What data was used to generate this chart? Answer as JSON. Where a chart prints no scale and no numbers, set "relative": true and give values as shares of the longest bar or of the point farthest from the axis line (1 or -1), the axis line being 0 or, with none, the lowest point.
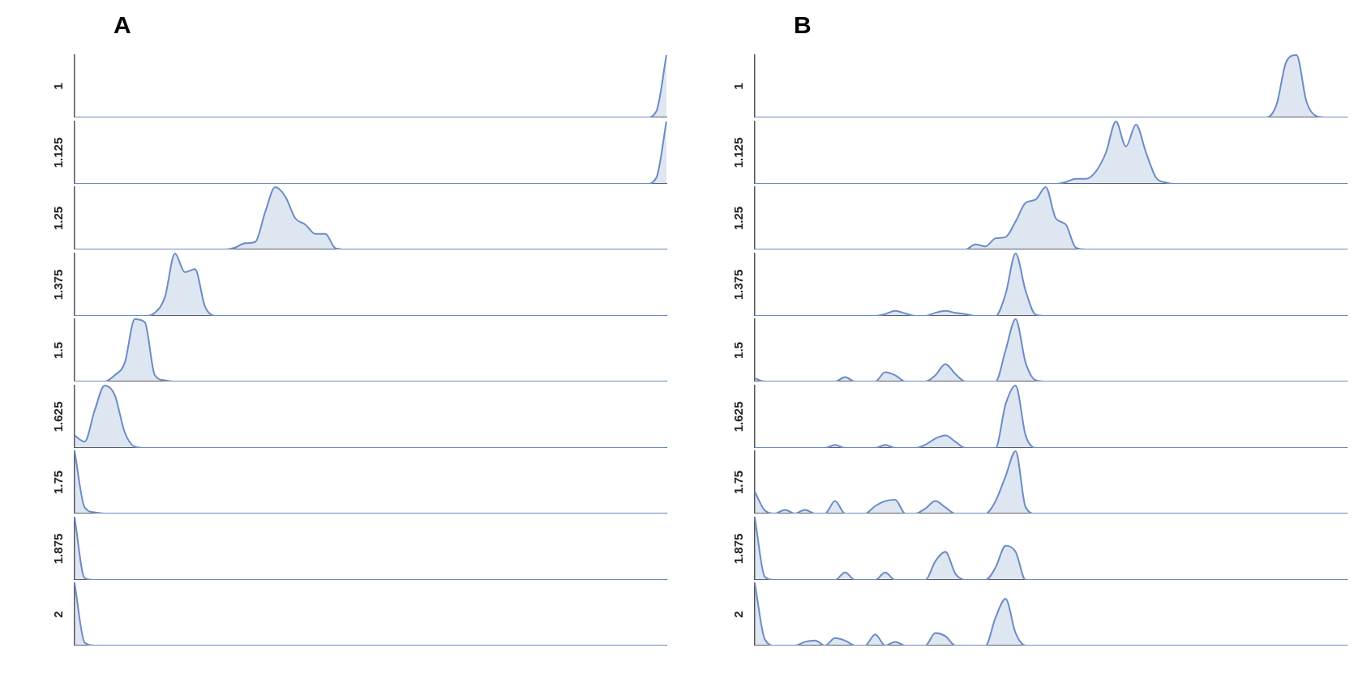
{
  "chart_data": [
    {
      "type": "area",
      "relative": true,
      "title": "A",
      "ylabel": "1",
      "color": "#6b8cc6",
      "categories": [
        null,
        null,
        null,
        null,
        null,
        null,
        null,
        null,
        null,
        null,
        null,
        null,
        null,
        null,
        null,
        null,
        null,
        null,
        null,
        null,
        null,
        null,
        null,
        null,
        null,
        null,
        null,
        null,
        null,
        null,
        null,
        null,
        null,
        null,
        null,
        null,
        null,
        null,
        null,
        null,
        null,
        null,
        null,
        null,
        null,
        null,
        null,
        null,
        null,
        null,
        null,
        null,
        null,
        null,
        null,
        null,
        null,
        null,
        null,
        null
      ],
      "values": [
        0,
        0,
        0,
        0,
        0,
        0,
        0,
        0,
        0,
        0,
        0,
        0,
        0,
        0,
        0,
        0,
        0,
        0,
        0,
        0,
        0,
        0,
        0,
        0,
        0,
        0,
        0,
        0,
        0,
        0,
        0,
        0,
        0,
        0,
        0,
        0,
        0,
        0,
        0,
        0,
        0,
        0,
        0,
        0,
        0,
        0,
        0,
        0,
        0,
        0,
        0,
        0,
        0,
        0,
        0,
        0,
        0,
        0,
        0.1,
        1
      ]
    },
    {
      "type": "area",
      "relative": true,
      "ylabel": "1.125",
      "color": "#6b8cc6",
      "categories": [
        null,
        null,
        null,
        null,
        null,
        null,
        null,
        null,
        null,
        null,
        null,
        null,
        null,
        null,
        null,
        null,
        null,
        null,
        null,
        null,
        null,
        null,
        null,
        null,
        null,
        null,
        null,
        null,
        null,
        null,
        null,
        null,
        null,
        null,
        null,
        null,
        null,
        null,
        null,
        null,
        null,
        null,
        null,
        null,
        null,
        null,
        null,
        null,
        null,
        null,
        null,
        null,
        null,
        null,
        null,
        null,
        null,
        null,
        null,
        null
      ],
      "values": [
        0,
        0,
        0,
        0,
        0,
        0,
        0,
        0,
        0,
        0,
        0,
        0,
        0,
        0,
        0,
        0,
        0,
        0,
        0,
        0,
        0,
        0,
        0,
        0,
        0,
        0,
        0,
        0,
        0,
        0,
        0,
        0,
        0,
        0,
        0,
        0,
        0,
        0,
        0,
        0,
        0,
        0,
        0,
        0,
        0,
        0,
        0,
        0,
        0,
        0,
        0,
        0,
        0,
        0,
        0,
        0,
        0,
        0,
        0.1,
        1
      ]
    },
    {
      "type": "area",
      "relative": true,
      "ylabel": "1.25",
      "color": "#6b8cc6",
      "categories": [
        null,
        null,
        null,
        null,
        null,
        null,
        null,
        null,
        null,
        null,
        null,
        null,
        null,
        null,
        null,
        null,
        null,
        null,
        null,
        null,
        null,
        null,
        null,
        null,
        null,
        null,
        null,
        null,
        null,
        null,
        null,
        null,
        null,
        null,
        null,
        null,
        null,
        null,
        null,
        null,
        null,
        null,
        null,
        null,
        null,
        null,
        null,
        null,
        null,
        null,
        null,
        null,
        null,
        null,
        null,
        null,
        null,
        null,
        null,
        null
      ],
      "values": [
        0,
        0,
        0,
        0,
        0,
        0,
        0,
        0,
        0,
        0,
        0,
        0,
        0,
        0,
        0,
        0,
        0.03,
        0.1,
        0.12,
        0.6,
        1,
        0.85,
        0.5,
        0.4,
        0.25,
        0.25,
        0.02,
        0,
        0,
        0,
        0,
        0,
        0,
        0,
        0,
        0,
        0,
        0,
        0,
        0,
        0,
        0,
        0,
        0,
        0,
        0,
        0,
        0,
        0,
        0,
        0,
        0,
        0,
        0,
        0,
        0,
        0,
        0,
        0,
        0
      ]
    },
    {
      "type": "area",
      "relative": true,
      "ylabel": "1.375",
      "color": "#6b8cc6",
      "categories": [
        null,
        null,
        null,
        null,
        null,
        null,
        null,
        null,
        null,
        null,
        null,
        null,
        null,
        null,
        null,
        null,
        null,
        null,
        null,
        null,
        null,
        null,
        null,
        null,
        null,
        null,
        null,
        null,
        null,
        null,
        null,
        null,
        null,
        null,
        null,
        null,
        null,
        null,
        null,
        null,
        null,
        null,
        null,
        null,
        null,
        null,
        null,
        null,
        null,
        null,
        null,
        null,
        null,
        null,
        null,
        null,
        null,
        null,
        null,
        null
      ],
      "values": [
        0,
        0,
        0,
        0,
        0,
        0,
        0,
        0,
        0.05,
        0.3,
        1,
        0.7,
        0.75,
        0.15,
        0,
        0,
        0,
        0,
        0,
        0,
        0,
        0,
        0,
        0,
        0,
        0,
        0,
        0,
        0,
        0,
        0,
        0,
        0,
        0,
        0,
        0,
        0,
        0,
        0,
        0,
        0,
        0,
        0,
        0,
        0,
        0,
        0,
        0,
        0,
        0,
        0,
        0,
        0,
        0,
        0,
        0,
        0,
        0,
        0,
        0
      ]
    },
    {
      "type": "area",
      "relative": true,
      "ylabel": "1.5",
      "color": "#6b8cc6",
      "categories": [
        null,
        null,
        null,
        null,
        null,
        null,
        null,
        null,
        null,
        null,
        null,
        null,
        null,
        null,
        null,
        null,
        null,
        null,
        null,
        null,
        null,
        null,
        null,
        null,
        null,
        null,
        null,
        null,
        null,
        null,
        null,
        null,
        null,
        null,
        null,
        null,
        null,
        null,
        null,
        null,
        null,
        null,
        null,
        null,
        null,
        null,
        null,
        null,
        null,
        null,
        null,
        null,
        null,
        null,
        null,
        null,
        null,
        null,
        null,
        null
      ],
      "values": [
        0,
        0,
        0,
        0,
        0.1,
        0.3,
        1,
        0.95,
        0.1,
        0.02,
        0,
        0,
        0,
        0,
        0,
        0,
        0,
        0,
        0,
        0,
        0,
        0,
        0,
        0,
        0,
        0,
        0,
        0,
        0,
        0,
        0,
        0,
        0,
        0,
        0,
        0,
        0,
        0,
        0,
        0,
        0,
        0,
        0,
        0,
        0,
        0,
        0,
        0,
        0,
        0,
        0,
        0,
        0,
        0,
        0,
        0,
        0,
        0,
        0,
        0
      ]
    },
    {
      "type": "area",
      "relative": true,
      "ylabel": "1.625",
      "color": "#6b8cc6",
      "categories": [
        null,
        null,
        null,
        null,
        null,
        null,
        null,
        null,
        null,
        null,
        null,
        null,
        null,
        null,
        null,
        null,
        null,
        null,
        null,
        null,
        null,
        null,
        null,
        null,
        null,
        null,
        null,
        null,
        null,
        null,
        null,
        null,
        null,
        null,
        null,
        null,
        null,
        null,
        null,
        null,
        null,
        null,
        null,
        null,
        null,
        null,
        null,
        null,
        null,
        null,
        null,
        null,
        null,
        null,
        null,
        null,
        null,
        null,
        null,
        null
      ],
      "values": [
        0.2,
        0.1,
        0.6,
        1,
        0.85,
        0.25,
        0.02,
        0,
        0,
        0,
        0,
        0,
        0,
        0,
        0,
        0,
        0,
        0,
        0,
        0,
        0,
        0,
        0,
        0,
        0,
        0,
        0,
        0,
        0,
        0,
        0,
        0,
        0,
        0,
        0,
        0,
        0,
        0,
        0,
        0,
        0,
        0,
        0,
        0,
        0,
        0,
        0,
        0,
        0,
        0,
        0,
        0,
        0,
        0,
        0,
        0,
        0,
        0,
        0,
        0
      ]
    },
    {
      "type": "area",
      "relative": true,
      "ylabel": "1.75",
      "color": "#6b8cc6",
      "categories": [
        null,
        null,
        null,
        null,
        null,
        null,
        null,
        null,
        null,
        null,
        null,
        null,
        null,
        null,
        null,
        null,
        null,
        null,
        null,
        null,
        null,
        null,
        null,
        null,
        null,
        null,
        null,
        null,
        null,
        null,
        null,
        null,
        null,
        null,
        null,
        null,
        null,
        null,
        null,
        null,
        null,
        null,
        null,
        null,
        null,
        null,
        null,
        null,
        null,
        null,
        null,
        null,
        null,
        null,
        null,
        null,
        null,
        null,
        null,
        null
      ],
      "values": [
        1,
        0.1,
        0.02,
        0,
        0,
        0,
        0,
        0,
        0,
        0,
        0,
        0,
        0,
        0,
        0,
        0,
        0,
        0,
        0,
        0,
        0,
        0,
        0,
        0,
        0,
        0,
        0,
        0,
        0,
        0,
        0,
        0,
        0,
        0,
        0,
        0,
        0,
        0,
        0,
        0,
        0,
        0,
        0,
        0,
        0,
        0,
        0,
        0,
        0,
        0,
        0,
        0,
        0,
        0,
        0,
        0,
        0,
        0,
        0,
        0
      ]
    },
    {
      "type": "area",
      "relative": true,
      "ylabel": "1.875",
      "color": "#6b8cc6",
      "categories": [
        null,
        null,
        null,
        null,
        null,
        null,
        null,
        null,
        null,
        null,
        null,
        null,
        null,
        null,
        null,
        null,
        null,
        null,
        null,
        null,
        null,
        null,
        null,
        null,
        null,
        null,
        null,
        null,
        null,
        null,
        null,
        null,
        null,
        null,
        null,
        null,
        null,
        null,
        null,
        null,
        null,
        null,
        null,
        null,
        null,
        null,
        null,
        null,
        null,
        null,
        null,
        null,
        null,
        null,
        null,
        null,
        null,
        null,
        null,
        null
      ],
      "values": [
        1,
        0.03,
        0,
        0,
        0,
        0,
        0,
        0,
        0,
        0,
        0,
        0,
        0,
        0,
        0,
        0,
        0,
        0,
        0,
        0,
        0,
        0,
        0,
        0,
        0,
        0,
        0,
        0,
        0,
        0,
        0,
        0,
        0,
        0,
        0,
        0,
        0,
        0,
        0,
        0,
        0,
        0,
        0,
        0,
        0,
        0,
        0,
        0,
        0,
        0,
        0,
        0,
        0,
        0,
        0,
        0,
        0,
        0,
        0,
        0
      ]
    },
    {
      "type": "area",
      "relative": true,
      "ylabel": "2",
      "color": "#6b8cc6",
      "categories": [
        null,
        null,
        null,
        null,
        null,
        null,
        null,
        null,
        null,
        null,
        null,
        null,
        null,
        null,
        null,
        null,
        null,
        null,
        null,
        null,
        null,
        null,
        null,
        null,
        null,
        null,
        null,
        null,
        null,
        null,
        null,
        null,
        null,
        null,
        null,
        null,
        null,
        null,
        null,
        null,
        null,
        null,
        null,
        null,
        null,
        null,
        null,
        null,
        null,
        null,
        null,
        null,
        null,
        null,
        null,
        null,
        null,
        null,
        null,
        null
      ],
      "values": [
        1,
        0.05,
        0,
        0,
        0,
        0,
        0,
        0,
        0,
        0,
        0,
        0,
        0,
        0,
        0,
        0,
        0,
        0,
        0,
        0,
        0,
        0,
        0,
        0,
        0,
        0,
        0,
        0,
        0,
        0,
        0,
        0,
        0,
        0,
        0,
        0,
        0,
        0,
        0,
        0,
        0,
        0,
        0,
        0,
        0,
        0,
        0,
        0,
        0,
        0,
        0,
        0,
        0,
        0,
        0,
        0,
        0,
        0,
        0,
        0
      ]
    },
    {
      "type": "area",
      "relative": true,
      "title": "B",
      "ylabel": "1",
      "color": "#6b8cc6",
      "categories": [
        null,
        null,
        null,
        null,
        null,
        null,
        null,
        null,
        null,
        null,
        null,
        null,
        null,
        null,
        null,
        null,
        null,
        null,
        null,
        null,
        null,
        null,
        null,
        null,
        null,
        null,
        null,
        null,
        null,
        null,
        null,
        null,
        null,
        null,
        null,
        null,
        null,
        null,
        null,
        null,
        null,
        null,
        null,
        null,
        null,
        null,
        null,
        null,
        null,
        null,
        null,
        null,
        null,
        null,
        null,
        null,
        null,
        null,
        null,
        null
      ],
      "values": [
        0,
        0,
        0,
        0,
        0,
        0,
        0,
        0,
        0,
        0,
        0,
        0,
        0,
        0,
        0,
        0,
        0,
        0,
        0,
        0,
        0,
        0,
        0,
        0,
        0,
        0,
        0,
        0,
        0,
        0,
        0,
        0,
        0,
        0,
        0,
        0,
        0,
        0,
        0,
        0,
        0,
        0,
        0,
        0,
        0,
        0,
        0,
        0,
        0,
        0,
        0,
        0,
        0.2,
        0.9,
        1,
        0.25,
        0.02,
        0,
        0,
        0
      ]
    },
    {
      "type": "area",
      "relative": true,
      "ylabel": "1.125",
      "color": "#6b8cc6",
      "categories": [
        null,
        null,
        null,
        null,
        null,
        null,
        null,
        null,
        null,
        null,
        null,
        null,
        null,
        null,
        null,
        null,
        null,
        null,
        null,
        null,
        null,
        null,
        null,
        null,
        null,
        null,
        null,
        null,
        null,
        null,
        null,
        null,
        null,
        null,
        null,
        null,
        null,
        null,
        null,
        null,
        null,
        null,
        null,
        null,
        null,
        null,
        null,
        null,
        null,
        null,
        null,
        null,
        null,
        null,
        null,
        null,
        null,
        null,
        null,
        null
      ],
      "values": [
        0,
        0,
        0,
        0,
        0,
        0,
        0,
        0,
        0,
        0,
        0,
        0,
        0,
        0,
        0,
        0,
        0,
        0,
        0,
        0,
        0,
        0,
        0,
        0,
        0,
        0,
        0,
        0,
        0,
        0,
        0,
        0.03,
        0.08,
        0.08,
        0.2,
        0.5,
        1,
        0.6,
        0.95,
        0.5,
        0.1,
        0.02,
        0,
        0,
        0,
        0,
        0,
        0,
        0,
        0,
        0,
        0,
        0,
        0,
        0,
        0,
        0,
        0,
        0,
        0
      ]
    },
    {
      "type": "area",
      "relative": true,
      "ylabel": "1.25",
      "color": "#6b8cc6",
      "categories": [
        null,
        null,
        null,
        null,
        null,
        null,
        null,
        null,
        null,
        null,
        null,
        null,
        null,
        null,
        null,
        null,
        null,
        null,
        null,
        null,
        null,
        null,
        null,
        null,
        null,
        null,
        null,
        null,
        null,
        null,
        null,
        null,
        null,
        null,
        null,
        null,
        null,
        null,
        null,
        null,
        null,
        null,
        null,
        null,
        null,
        null,
        null,
        null,
        null,
        null,
        null,
        null,
        null,
        null,
        null,
        null,
        null,
        null,
        null,
        null
      ],
      "values": [
        0,
        0,
        0,
        0,
        0,
        0,
        0,
        0,
        0,
        0,
        0,
        0,
        0,
        0,
        0,
        0,
        0,
        0,
        0,
        0,
        0,
        0,
        0.08,
        0.05,
        0.18,
        0.2,
        0.45,
        0.75,
        0.8,
        1,
        0.5,
        0.4,
        0.03,
        0,
        0,
        0,
        0,
        0,
        0,
        0,
        0,
        0,
        0,
        0,
        0,
        0,
        0,
        0,
        0,
        0,
        0,
        0,
        0,
        0,
        0,
        0,
        0,
        0,
        0,
        0
      ]
    },
    {
      "type": "area",
      "relative": true,
      "ylabel": "1.375",
      "color": "#6b8cc6",
      "categories": [
        null,
        null,
        null,
        null,
        null,
        null,
        null,
        null,
        null,
        null,
        null,
        null,
        null,
        null,
        null,
        null,
        null,
        null,
        null,
        null,
        null,
        null,
        null,
        null,
        null,
        null,
        null,
        null,
        null,
        null,
        null,
        null,
        null,
        null,
        null,
        null,
        null,
        null,
        null,
        null,
        null,
        null,
        null,
        null,
        null,
        null,
        null,
        null,
        null,
        null,
        null,
        null,
        null,
        null,
        null,
        null,
        null,
        null,
        null,
        null
      ],
      "values": [
        0,
        0,
        0,
        0,
        0,
        0,
        0,
        0,
        0,
        0,
        0,
        0,
        0,
        0.03,
        0.08,
        0.04,
        0,
        0,
        0.05,
        0.08,
        0.05,
        0.03,
        0,
        0,
        0,
        0.35,
        1,
        0.4,
        0.02,
        0,
        0,
        0,
        0,
        0,
        0,
        0,
        0,
        0,
        0,
        0,
        0,
        0,
        0,
        0,
        0,
        0,
        0,
        0,
        0,
        0,
        0,
        0,
        0,
        0,
        0,
        0,
        0,
        0,
        0,
        0
      ]
    },
    {
      "type": "area",
      "relative": true,
      "ylabel": "1.5",
      "color": "#6b8cc6",
      "categories": [
        null,
        null,
        null,
        null,
        null,
        null,
        null,
        null,
        null,
        null,
        null,
        null,
        null,
        null,
        null,
        null,
        null,
        null,
        null,
        null,
        null,
        null,
        null,
        null,
        null,
        null,
        null,
        null,
        null,
        null,
        null,
        null,
        null,
        null,
        null,
        null,
        null,
        null,
        null,
        null,
        null,
        null,
        null,
        null,
        null,
        null,
        null,
        null,
        null,
        null,
        null,
        null,
        null,
        null,
        null,
        null,
        null,
        null,
        null,
        null
      ],
      "values": [
        0.05,
        0,
        0,
        0,
        0,
        0,
        0,
        0,
        0,
        0.07,
        0,
        0,
        0,
        0.15,
        0.1,
        0,
        0,
        0,
        0.1,
        0.28,
        0.12,
        0,
        0,
        0,
        0,
        0.5,
        1,
        0.3,
        0.02,
        0,
        0,
        0,
        0,
        0,
        0,
        0,
        0,
        0,
        0,
        0,
        0,
        0,
        0,
        0,
        0,
        0,
        0,
        0,
        0,
        0,
        0,
        0,
        0,
        0,
        0,
        0,
        0,
        0,
        0,
        0
      ]
    },
    {
      "type": "area",
      "relative": true,
      "ylabel": "1.625",
      "color": "#6b8cc6",
      "categories": [
        null,
        null,
        null,
        null,
        null,
        null,
        null,
        null,
        null,
        null,
        null,
        null,
        null,
        null,
        null,
        null,
        null,
        null,
        null,
        null,
        null,
        null,
        null,
        null,
        null,
        null,
        null,
        null,
        null,
        null,
        null,
        null,
        null,
        null,
        null,
        null,
        null,
        null,
        null,
        null,
        null,
        null,
        null,
        null,
        null,
        null,
        null,
        null,
        null,
        null,
        null,
        null,
        null,
        null,
        null,
        null,
        null,
        null,
        null,
        null
      ],
      "values": [
        0,
        0,
        0,
        0,
        0,
        0,
        0,
        0,
        0.05,
        0,
        0,
        0,
        0,
        0.05,
        0,
        0,
        0,
        0.05,
        0.15,
        0.2,
        0.1,
        0,
        0,
        0,
        0,
        0.7,
        1,
        0.2,
        0,
        0,
        0,
        0,
        0,
        0,
        0,
        0,
        0,
        0,
        0,
        0,
        0,
        0,
        0,
        0,
        0,
        0,
        0,
        0,
        0,
        0,
        0,
        0,
        0,
        0,
        0,
        0,
        0,
        0,
        0,
        0
      ]
    },
    {
      "type": "area",
      "relative": true,
      "ylabel": "1.75",
      "color": "#6b8cc6",
      "categories": [
        null,
        null,
        null,
        null,
        null,
        null,
        null,
        null,
        null,
        null,
        null,
        null,
        null,
        null,
        null,
        null,
        null,
        null,
        null,
        null,
        null,
        null,
        null,
        null,
        null,
        null,
        null,
        null,
        null,
        null,
        null,
        null,
        null,
        null,
        null,
        null,
        null,
        null,
        null,
        null,
        null,
        null,
        null,
        null,
        null,
        null,
        null,
        null,
        null,
        null,
        null,
        null,
        null,
        null,
        null,
        null,
        null,
        null,
        null,
        null
      ],
      "values": [
        0.35,
        0.05,
        0,
        0.06,
        0,
        0.06,
        0,
        0,
        0.2,
        0,
        0,
        0,
        0.12,
        0.2,
        0.22,
        0,
        0,
        0.08,
        0.2,
        0.1,
        0,
        0,
        0,
        0,
        0.2,
        0.6,
        1,
        0.1,
        0,
        0,
        0,
        0,
        0,
        0,
        0,
        0,
        0,
        0,
        0,
        0,
        0,
        0,
        0,
        0,
        0,
        0,
        0,
        0,
        0,
        0,
        0,
        0,
        0,
        0,
        0,
        0,
        0,
        0,
        0,
        0
      ]
    },
    {
      "type": "area",
      "relative": true,
      "ylabel": "1.875",
      "color": "#6b8cc6",
      "categories": [
        null,
        null,
        null,
        null,
        null,
        null,
        null,
        null,
        null,
        null,
        null,
        null,
        null,
        null,
        null,
        null,
        null,
        null,
        null,
        null,
        null,
        null,
        null,
        null,
        null,
        null,
        null,
        null,
        null,
        null,
        null,
        null,
        null,
        null,
        null,
        null,
        null,
        null,
        null,
        null,
        null,
        null,
        null,
        null,
        null,
        null,
        null,
        null,
        null,
        null,
        null,
        null,
        null,
        null,
        null,
        null,
        null,
        null,
        null,
        null
      ],
      "values": [
        1,
        0.05,
        0,
        0,
        0,
        0,
        0,
        0,
        0,
        0.12,
        0,
        0,
        0,
        0.12,
        0,
        0,
        0,
        0,
        0.3,
        0.45,
        0.1,
        0,
        0,
        0,
        0.2,
        0.55,
        0.45,
        0,
        0,
        0,
        0,
        0,
        0,
        0,
        0,
        0,
        0,
        0,
        0,
        0,
        0,
        0,
        0,
        0,
        0,
        0,
        0,
        0,
        0,
        0,
        0,
        0,
        0,
        0,
        0,
        0,
        0,
        0,
        0,
        0
      ]
    },
    {
      "type": "area",
      "relative": true,
      "ylabel": "2",
      "color": "#6b8cc6",
      "categories": [
        null,
        null,
        null,
        null,
        null,
        null,
        null,
        null,
        null,
        null,
        null,
        null,
        null,
        null,
        null,
        null,
        null,
        null,
        null,
        null,
        null,
        null,
        null,
        null,
        null,
        null,
        null,
        null,
        null,
        null,
        null,
        null,
        null,
        null,
        null,
        null,
        null,
        null,
        null,
        null,
        null,
        null,
        null,
        null,
        null,
        null,
        null,
        null,
        null,
        null,
        null,
        null,
        null,
        null,
        null,
        null,
        null,
        null,
        null,
        null
      ],
      "values": [
        1,
        0.1,
        0,
        0,
        0,
        0.06,
        0.08,
        0,
        0.12,
        0.08,
        0,
        0,
        0.18,
        0,
        0.06,
        0,
        0,
        0,
        0.2,
        0.15,
        0,
        0,
        0,
        0,
        0.45,
        0.75,
        0.2,
        0,
        0,
        0,
        0,
        0,
        0,
        0,
        0,
        0,
        0,
        0,
        0,
        0,
        0,
        0,
        0,
        0,
        0,
        0,
        0,
        0,
        0,
        0,
        0,
        0,
        0,
        0,
        0,
        0,
        0,
        0,
        0,
        0
      ]
    }
  ]
}
